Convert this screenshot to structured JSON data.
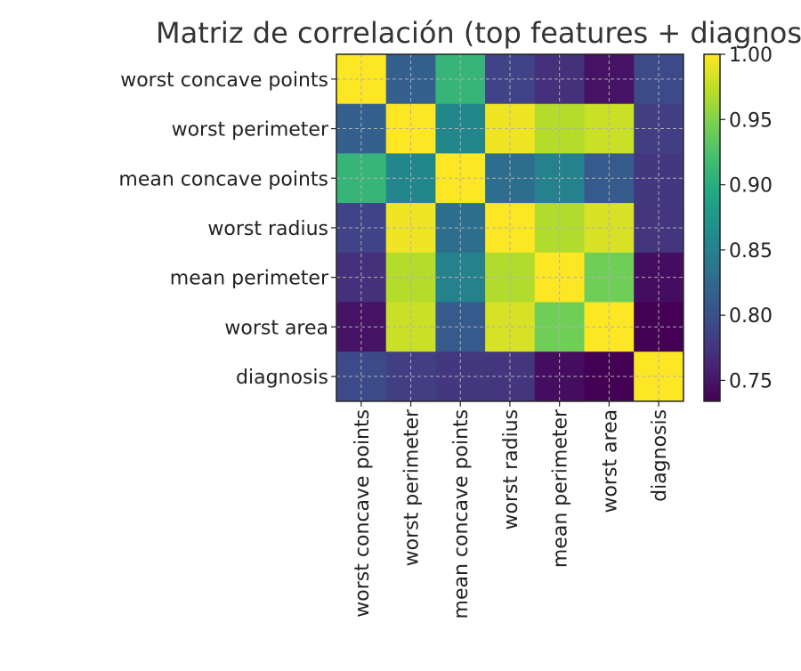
{
  "chart_data": {
    "type": "heatmap",
    "title": "Matriz de correlación (top features + diagnosis)",
    "row_labels": [
      "worst concave points",
      "worst perimeter",
      "mean concave points",
      "worst radius",
      "mean perimeter",
      "worst area",
      "diagnosis"
    ],
    "col_labels": [
      "worst concave points",
      "worst perimeter",
      "mean concave points",
      "worst radius",
      "mean perimeter",
      "worst area",
      "diagnosis"
    ],
    "values": [
      [
        1.0,
        0.816,
        0.91,
        0.787,
        0.771,
        0.747,
        0.794
      ],
      [
        0.816,
        1.0,
        0.856,
        0.994,
        0.97,
        0.978,
        0.783
      ],
      [
        0.91,
        0.856,
        1.0,
        0.83,
        0.851,
        0.81,
        0.777
      ],
      [
        0.787,
        0.994,
        0.83,
        1.0,
        0.969,
        0.984,
        0.776
      ],
      [
        0.771,
        0.97,
        0.851,
        0.969,
        1.0,
        0.942,
        0.743
      ],
      [
        0.747,
        0.978,
        0.81,
        0.984,
        0.942,
        1.0,
        0.734
      ],
      [
        0.794,
        0.783,
        0.777,
        0.776,
        0.743,
        0.734,
        1.0
      ]
    ],
    "colorbar": {
      "min": 0.734,
      "max": 1.0,
      "ticks": [
        0.75,
        0.8,
        0.85,
        0.9,
        0.95,
        1.0
      ],
      "tick_labels": [
        "0.75",
        "0.80",
        "0.85",
        "0.90",
        "0.95",
        "1.00"
      ]
    },
    "colormap": "viridis",
    "grid": true,
    "grid_style": "dashed",
    "legend": "colorbar-right"
  }
}
